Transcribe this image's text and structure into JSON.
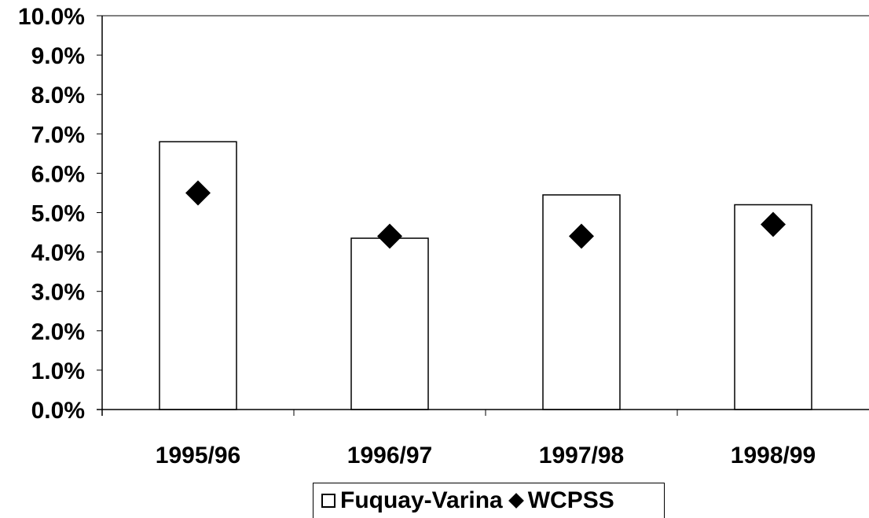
{
  "chart_data": {
    "type": "bar",
    "categories": [
      "1995/96",
      "1996/97",
      "1997/98",
      "1998/99"
    ],
    "series": [
      {
        "name": "Fuquay-Varina",
        "kind": "bar",
        "values": [
          6.8,
          4.35,
          5.45,
          5.2
        ]
      },
      {
        "name": "WCPSS",
        "kind": "marker-diamond",
        "values": [
          5.5,
          4.4,
          4.4,
          4.7
        ]
      }
    ],
    "y_ticks": [
      "0.0%",
      "1.0%",
      "2.0%",
      "3.0%",
      "4.0%",
      "5.0%",
      "6.0%",
      "7.0%",
      "8.0%",
      "9.0%",
      "10.0%"
    ],
    "ylim": [
      0,
      10
    ],
    "y_unit": "%",
    "grid": false,
    "legend_position": "bottom",
    "colors": {
      "bar_fill": "#ffffff",
      "bar_stroke": "#000000",
      "marker": "#000000"
    }
  },
  "legend": {
    "items": [
      {
        "label": "Fuquay-Varina",
        "icon": "square-outline-icon"
      },
      {
        "label": "WCPSS",
        "icon": "diamond-icon"
      }
    ]
  }
}
